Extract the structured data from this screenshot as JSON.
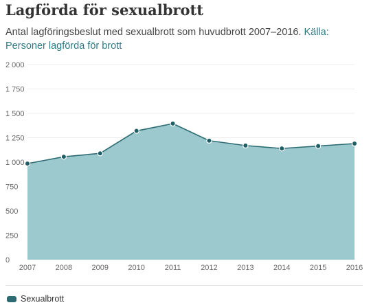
{
  "header": {
    "title": "Lagförda för sexualbrott",
    "subtitle_text": "Antal lagföringsbeslut med sexualbrott som huvudbrott 2007–2016. ",
    "source_link": "Källa: Personer lagförda för brott"
  },
  "legend": {
    "label": "Sexualbrott"
  },
  "colors": {
    "area_fill": "#9cc9cd",
    "line": "#2e6c74",
    "marker": "#1f5e66",
    "link": "#2f7a86",
    "grid": "#ececec"
  },
  "chart_data": {
    "type": "area",
    "title": "Lagförda för sexualbrott",
    "subtitle": "Antal lagföringsbeslut med sexualbrott som huvudbrott 2007–2016.",
    "xlabel": "",
    "ylabel": "",
    "x": [
      "2007",
      "2008",
      "2009",
      "2010",
      "2011",
      "2012",
      "2013",
      "2014",
      "2015",
      "2016"
    ],
    "series": [
      {
        "name": "Sexualbrott",
        "values": [
          985,
          1055,
          1090,
          1320,
          1395,
          1220,
          1170,
          1140,
          1165,
          1190
        ]
      }
    ],
    "ylim": [
      0,
      2000
    ],
    "yticks": [
      0,
      250,
      500,
      750,
      1000,
      1250,
      1500,
      1750,
      2000
    ],
    "ytick_labels": [
      "0",
      "250",
      "500",
      "750",
      "1 000",
      "1 250",
      "1 500",
      "1 750",
      "2 000"
    ],
    "grid": true,
    "legend_position": "bottom-left"
  }
}
